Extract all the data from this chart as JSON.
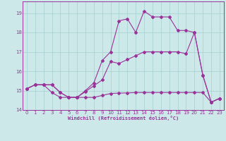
{
  "xlabel": "Windchill (Refroidissement éolien,°C)",
  "xlim": [
    -0.5,
    23.5
  ],
  "ylim": [
    14.0,
    19.6
  ],
  "yticks": [
    14,
    15,
    16,
    17,
    18,
    19
  ],
  "xticks": [
    0,
    1,
    2,
    3,
    4,
    5,
    6,
    7,
    8,
    9,
    10,
    11,
    12,
    13,
    14,
    15,
    16,
    17,
    18,
    19,
    20,
    21,
    22,
    23
  ],
  "background_color": "#cce8e8",
  "line_color": "#993399",
  "grid_color": "#aad4d4",
  "line1_x": [
    0,
    1,
    2,
    3,
    4,
    5,
    6,
    7,
    8,
    9,
    10,
    11,
    12,
    13,
    14,
    15,
    16,
    17,
    18,
    19,
    20,
    21,
    22,
    23
  ],
  "line1_y": [
    15.1,
    15.3,
    15.3,
    15.3,
    14.9,
    14.65,
    14.65,
    14.65,
    14.65,
    14.75,
    14.85,
    14.87,
    14.88,
    14.9,
    14.9,
    14.9,
    14.9,
    14.9,
    14.9,
    14.9,
    14.9,
    14.9,
    14.4,
    14.6
  ],
  "line2_x": [
    0,
    1,
    2,
    3,
    4,
    5,
    6,
    7,
    8,
    9,
    10,
    11,
    12,
    13,
    14,
    15,
    16,
    17,
    18,
    19,
    20,
    21,
    22,
    23
  ],
  "line2_y": [
    15.1,
    15.3,
    15.3,
    14.9,
    14.65,
    14.65,
    14.65,
    14.95,
    15.25,
    15.55,
    16.5,
    16.4,
    16.6,
    16.8,
    17.0,
    17.0,
    17.0,
    17.0,
    17.0,
    16.9,
    18.0,
    15.8,
    14.4,
    14.6
  ],
  "line3_x": [
    0,
    1,
    2,
    3,
    4,
    5,
    6,
    7,
    8,
    9,
    10,
    11,
    12,
    13,
    14,
    15,
    16,
    17,
    18,
    19,
    20,
    21,
    22,
    23
  ],
  "line3_y": [
    15.1,
    15.3,
    15.3,
    15.3,
    14.9,
    14.65,
    14.65,
    15.0,
    15.4,
    16.55,
    17.0,
    18.6,
    18.7,
    18.0,
    19.1,
    18.8,
    18.8,
    18.8,
    18.1,
    18.1,
    18.0,
    15.8,
    14.4,
    14.6
  ]
}
